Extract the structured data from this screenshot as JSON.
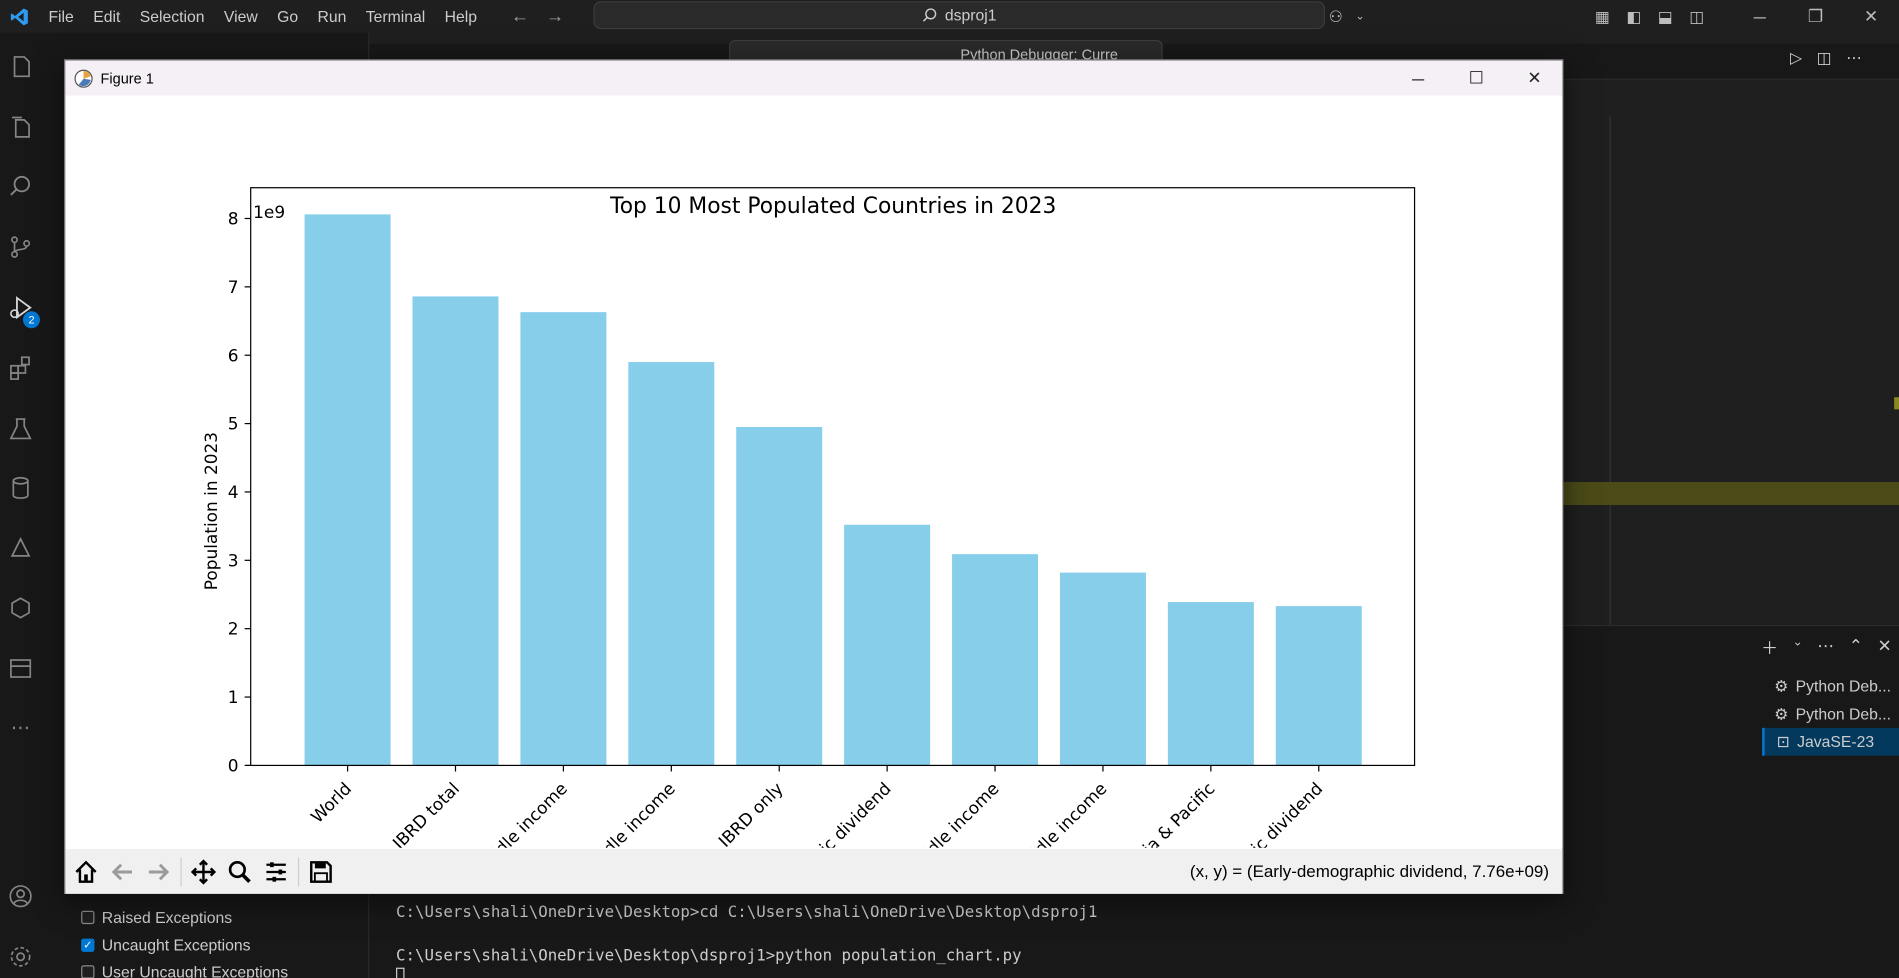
{
  "app": {
    "menu": [
      "File",
      "Edit",
      "Selection",
      "View",
      "Go",
      "Run",
      "Terminal",
      "Help"
    ],
    "search_text": "dsproj1",
    "debug_badge": "2",
    "debug_config": "Python Debugger: Curre"
  },
  "figure_window": {
    "title": "Figure 1",
    "coords_readout": "(x, y) = (Early-demographic dividend, 7.76e+09)",
    "toolbar_tools": [
      "home-icon",
      "back-icon",
      "forward-icon",
      "pan-icon",
      "zoom-icon",
      "configure-subplots-icon",
      "save-icon"
    ]
  },
  "chart_data": {
    "type": "bar",
    "title": "Top 10 Most Populated Countries in 2023",
    "ylabel": "Population in 2023",
    "xlabel": "",
    "offset_label": "1e9",
    "ylim": [
      0,
      8.45
    ],
    "yticks": [
      "0",
      "1",
      "2",
      "3",
      "4",
      "5",
      "6",
      "7",
      "8"
    ],
    "bar_color": "#87ceeb",
    "categories": [
      "World",
      "IBRD total",
      "ddle income",
      "ddle income",
      "IBRD only",
      "ic dividend",
      "ddle income",
      "ddle income",
      "ia & Pacific",
      "ic dividend"
    ],
    "values": [
      8.06,
      6.86,
      6.63,
      5.9,
      4.95,
      3.52,
      3.09,
      2.82,
      2.39,
      2.33
    ]
  },
  "panel": {
    "terminals": [
      {
        "label": "Python Deb...",
        "icon": "debug-icon"
      },
      {
        "label": "Python Deb...",
        "icon": "debug-icon"
      },
      {
        "label": "JavaSE-23",
        "icon": "terminal-icon"
      }
    ],
    "terminal_lines": [
      "C:\\Users\\shali\\OneDrive\\Desktop>cd C:\\Users\\shali\\OneDrive\\Desktop\\dsproj1",
      "",
      "C:\\Users\\shali\\OneDrive\\Desktop\\dsproj1>python population_chart.py"
    ]
  },
  "breakpoints": [
    {
      "label": "Raised Exceptions",
      "checked": false
    },
    {
      "label": "Uncaught Exceptions",
      "checked": true
    },
    {
      "label": "User Uncaught Exceptions",
      "checked": false
    }
  ]
}
